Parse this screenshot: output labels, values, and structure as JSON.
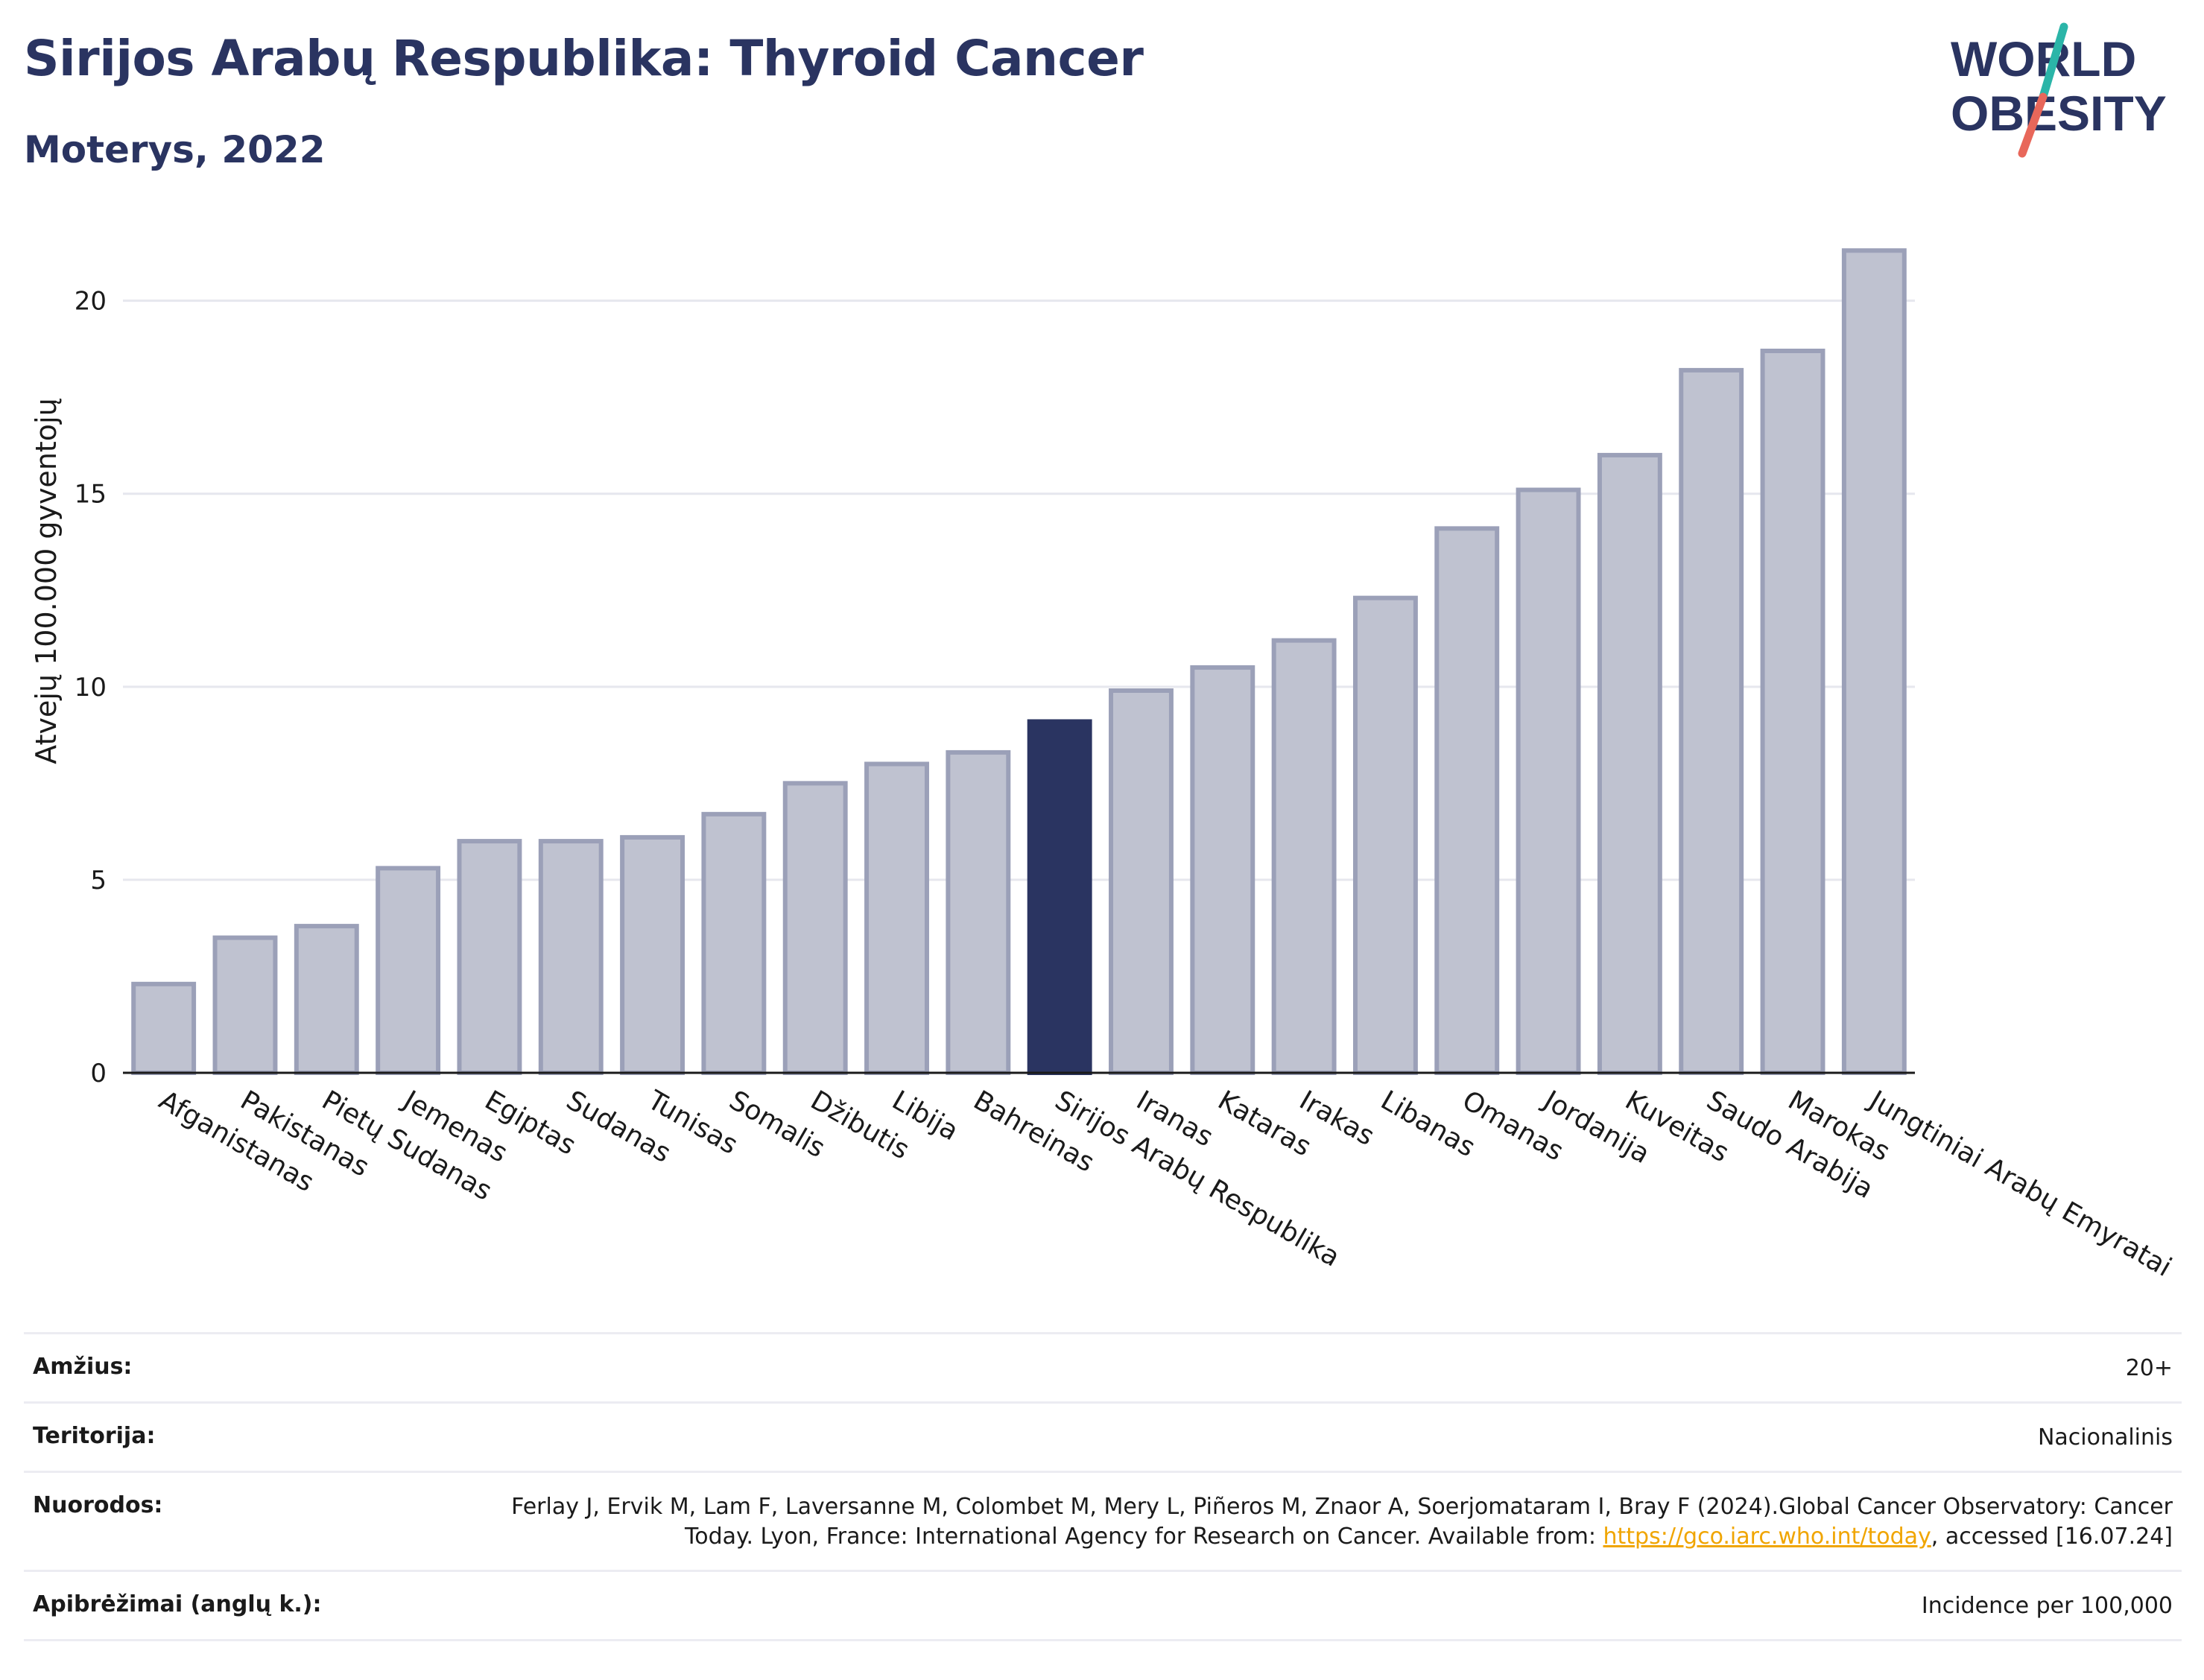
{
  "header": {
    "title": "Sirijos Arabų Respublika: Thyroid Cancer",
    "subtitle": "Moterys, 2022"
  },
  "logo": {
    "line1": "WORLD",
    "line2": "OBESITY",
    "colors": {
      "text": "#2a3461",
      "slash_top": "#2bb5a8",
      "slash_bottom": "#e8675a"
    }
  },
  "chart_data": {
    "type": "bar",
    "ylabel": "Atvejų 100.000 gyventojų",
    "xlabel": "",
    "ylim": [
      0,
      22
    ],
    "yticks": [
      0,
      5,
      10,
      15,
      20
    ],
    "grid": true,
    "highlight": "Sirijos Arabų Respublika",
    "colors": {
      "bar": "#bfc2d0",
      "bar_border": "#9ba0b8",
      "highlight": "#2a3461",
      "grid": "#e6e7ee"
    },
    "categories": [
      "Afganistanas",
      "Pakistanas",
      "Pietų Sudanas",
      "Jemenas",
      "Egiptas",
      "Sudanas",
      "Tunisas",
      "Somalis",
      "Džibutis",
      "Libija",
      "Bahreinas",
      "Sirijos Arabų Respublika",
      "Iranas",
      "Kataras",
      "Irakas",
      "Libanas",
      "Omanas",
      "Jordanija",
      "Kuveitas",
      "Saudo Arabija",
      "Marokas",
      "Jungtiniai Arabų Emyratai"
    ],
    "values": [
      2.3,
      3.5,
      3.8,
      5.3,
      6.0,
      6.0,
      6.1,
      6.7,
      7.5,
      8.0,
      8.3,
      9.1,
      9.9,
      10.5,
      11.2,
      12.3,
      14.1,
      15.1,
      16.0,
      18.2,
      18.7,
      21.3
    ]
  },
  "info": {
    "age_label": "Amžius:",
    "age_value": "20+",
    "territory_label": "Teritorija:",
    "territory_value": "Nacionalinis",
    "refs_label": "Nuorodos:",
    "refs_text1": "Ferlay J, Ervik M, Lam F, Laversanne M, Colombet M, Mery L, Piñeros M, Znaor A, Soerjomataram I, Bray F (2024).Global Cancer Observatory: Cancer Today. Lyon, France: International Agency for Research on Cancer. Available from: ",
    "refs_link": "https://gco.iarc.who.int/today",
    "refs_text2": ", accessed [16.07.24]",
    "defs_label": "Apibrėžimai (anglų k.):",
    "defs_value": "Incidence per 100,000"
  }
}
